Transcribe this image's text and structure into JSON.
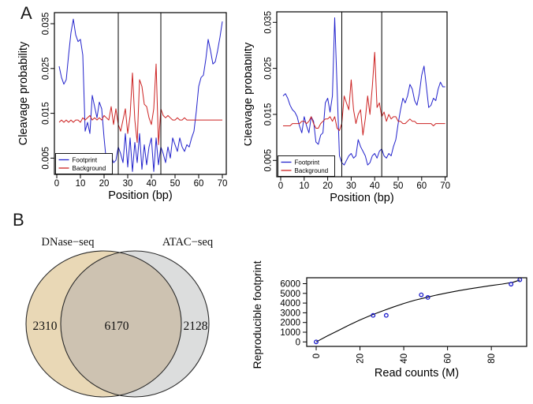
{
  "panels": {
    "a_label": "A",
    "b_label": "B"
  },
  "chart_data": [
    {
      "id": "cleavage_left",
      "type": "line",
      "xlabel": "Position (bp)",
      "ylabel": "Cleavage probability",
      "xlim": [
        0,
        70
      ],
      "ylim": [
        0.0014,
        0.0375
      ],
      "xticks": [
        0,
        10,
        20,
        30,
        40,
        50,
        60,
        70
      ],
      "xtick_labels": [
        "0",
        "10",
        "20",
        "30",
        "40",
        "50",
        "60",
        "70"
      ],
      "yticks": [
        0.005,
        0.015,
        0.025,
        0.035
      ],
      "ytick_labels": [
        "0.005",
        "0.015",
        "0.025",
        "0.035"
      ],
      "vlines": [
        26,
        44
      ],
      "legend": [
        "Footprint",
        "Background"
      ],
      "colors": [
        "#2222cc",
        "#cc2222"
      ],
      "legend_position": "bottom-left",
      "grid": false,
      "series": [
        {
          "name": "Footprint",
          "values": [
            0.0255,
            0.023,
            0.0215,
            0.0225,
            0.028,
            0.033,
            0.036,
            0.0325,
            0.031,
            0.0315,
            0.028,
            0.011,
            0.013,
            0.0105,
            0.019,
            0.0165,
            0.014,
            0.0175,
            0.016,
            0.0095,
            0.004,
            0.0045,
            0.0055,
            0.004,
            0.0045,
            0.0075,
            0.006,
            0.004,
            0.0105,
            0.003,
            0.0095,
            0.002,
            0.0085,
            0.004,
            0.0105,
            0.0025,
            0.008,
            0.0035,
            0.0075,
            0.0095,
            0.002,
            0.0095,
            0.0035,
            0.0075,
            0.006,
            0.004,
            0.0075,
            0.005,
            0.0095,
            0.008,
            0.0065,
            0.0095,
            0.0075,
            0.0065,
            0.008,
            0.0075,
            0.0095,
            0.011,
            0.0155,
            0.021,
            0.023,
            0.0235,
            0.027,
            0.0315,
            0.029,
            0.026,
            0.0265,
            0.029,
            0.032,
            0.0355
          ]
        },
        {
          "name": "Background",
          "values": [
            0.013,
            0.0135,
            0.013,
            0.0135,
            0.013,
            0.0135,
            0.013,
            0.0135,
            0.0135,
            0.013,
            0.014,
            0.0135,
            0.014,
            0.0145,
            0.0135,
            0.014,
            0.0135,
            0.014,
            0.0135,
            0.0145,
            0.014,
            0.0135,
            0.0165,
            0.0125,
            0.016,
            0.0125,
            0.011,
            0.0135,
            0.016,
            0.0105,
            0.0145,
            0.024,
            0.0135,
            0.0085,
            0.0225,
            0.021,
            0.017,
            0.0165,
            0.014,
            0.0125,
            0.016,
            0.026,
            0.008,
            0.016,
            0.0145,
            0.014,
            0.0145,
            0.014,
            0.0135,
            0.0135,
            0.014,
            0.0135,
            0.0135,
            0.014,
            0.0135,
            0.0135,
            0.0135,
            0.0135,
            0.0135,
            0.0135,
            0.0135,
            0.0135,
            0.0135,
            0.0135,
            0.0135,
            0.0135,
            0.0135,
            0.0135,
            0.0135,
            0.0135
          ]
        }
      ]
    },
    {
      "id": "cleavage_right",
      "type": "line",
      "xlabel": "Position (bp)",
      "ylabel": "Cleavage probability",
      "xlim": [
        0,
        70
      ],
      "ylim": [
        0.0015,
        0.0373
      ],
      "xticks": [
        0,
        10,
        20,
        30,
        40,
        50,
        60,
        70
      ],
      "xtick_labels": [
        "0",
        "10",
        "20",
        "30",
        "40",
        "50",
        "60",
        "70"
      ],
      "yticks": [
        0.005,
        0.015,
        0.025,
        0.035
      ],
      "ytick_labels": [
        "0.005",
        "0.015",
        "0.025",
        "0.035"
      ],
      "vlines": [
        26,
        43
      ],
      "legend": [
        "Footprint",
        "Background"
      ],
      "colors": [
        "#2222cc",
        "#cc2222"
      ],
      "legend_position": "bottom-left",
      "grid": false,
      "series": [
        {
          "name": "Footprint",
          "values": [
            0.019,
            0.0195,
            0.0185,
            0.017,
            0.016,
            0.0155,
            0.0145,
            0.0125,
            0.011,
            0.0145,
            0.0125,
            0.011,
            0.0145,
            0.0135,
            0.009,
            0.0085,
            0.0105,
            0.011,
            0.0175,
            0.0185,
            0.0155,
            0.019,
            0.036,
            0.021,
            0.006,
            0.0045,
            0.004,
            0.005,
            0.006,
            0.0065,
            0.0055,
            0.006,
            0.0095,
            0.008,
            0.007,
            0.006,
            0.004,
            0.0045,
            0.006,
            0.0065,
            0.0055,
            0.007,
            0.0075,
            0.006,
            0.0055,
            0.0065,
            0.006,
            0.008,
            0.0095,
            0.013,
            0.016,
            0.0185,
            0.0175,
            0.019,
            0.0215,
            0.0205,
            0.018,
            0.017,
            0.0195,
            0.0235,
            0.0255,
            0.021,
            0.0165,
            0.017,
            0.0185,
            0.018,
            0.0205,
            0.022,
            0.021,
            0.021
          ]
        },
        {
          "name": "Background",
          "values": [
            0.0125,
            0.0125,
            0.0125,
            0.0125,
            0.013,
            0.013,
            0.013,
            0.013,
            0.0135,
            0.0135,
            0.013,
            0.0135,
            0.0145,
            0.013,
            0.012,
            0.012,
            0.013,
            0.0135,
            0.014,
            0.014,
            0.0145,
            0.0135,
            0.0145,
            0.012,
            0.0115,
            0.013,
            0.019,
            0.0175,
            0.016,
            0.0225,
            0.016,
            0.013,
            0.015,
            0.016,
            0.0105,
            0.014,
            0.019,
            0.015,
            0.021,
            0.0285,
            0.0165,
            0.0175,
            0.0145,
            0.0155,
            0.0135,
            0.015,
            0.014,
            0.0145,
            0.0145,
            0.0135,
            0.0135,
            0.013,
            0.013,
            0.0135,
            0.014,
            0.0135,
            0.0135,
            0.013,
            0.013,
            0.013,
            0.013,
            0.013,
            0.013,
            0.013,
            0.0125,
            0.013,
            0.013,
            0.013,
            0.013,
            0.013
          ]
        }
      ]
    },
    {
      "id": "venn_footprints",
      "type": "venn",
      "left_label": "DNase−seq",
      "right_label": "ATAC−seq",
      "left_only": "2310",
      "intersection": "6170",
      "right_only": "2128",
      "left_color": "#e9d8b6",
      "right_color": "#dcdddd",
      "overlap_color": "#cdc2b1",
      "outline_color": "#2a2a2a"
    },
    {
      "id": "footprint_saturation",
      "type": "scatter",
      "xlabel": "Read counts (M)",
      "ylabel": "Reproducible footprints",
      "xlim": [
        0,
        96
      ],
      "ylim": [
        0,
        6600
      ],
      "xticks": [
        0,
        20,
        40,
        60,
        80
      ],
      "xtick_labels": [
        "0",
        "20",
        "40",
        "60",
        "80"
      ],
      "yticks": [
        0,
        1000,
        2000,
        3000,
        4000,
        5000,
        6000
      ],
      "ytick_labels": [
        "0",
        "1000",
        "2000",
        "3000",
        "4000",
        "5000",
        "6000"
      ],
      "point_color": "#1a1acc",
      "curve_color": "#000000",
      "points": [
        [
          0,
          0
        ],
        [
          26,
          2730
        ],
        [
          32,
          2730
        ],
        [
          48,
          4850
        ],
        [
          51,
          4580
        ],
        [
          89,
          5950
        ],
        [
          93,
          6400
        ]
      ],
      "curve": [
        [
          0,
          0
        ],
        [
          5,
          600
        ],
        [
          10,
          1160
        ],
        [
          15,
          1730
        ],
        [
          20,
          2260
        ],
        [
          25,
          2740
        ],
        [
          30,
          3160
        ],
        [
          35,
          3580
        ],
        [
          40,
          3960
        ],
        [
          45,
          4290
        ],
        [
          50,
          4560
        ],
        [
          55,
          4830
        ],
        [
          60,
          5060
        ],
        [
          65,
          5280
        ],
        [
          70,
          5460
        ],
        [
          75,
          5640
        ],
        [
          80,
          5810
        ],
        [
          85,
          5960
        ],
        [
          90,
          6150
        ],
        [
          93,
          6380
        ]
      ]
    }
  ]
}
